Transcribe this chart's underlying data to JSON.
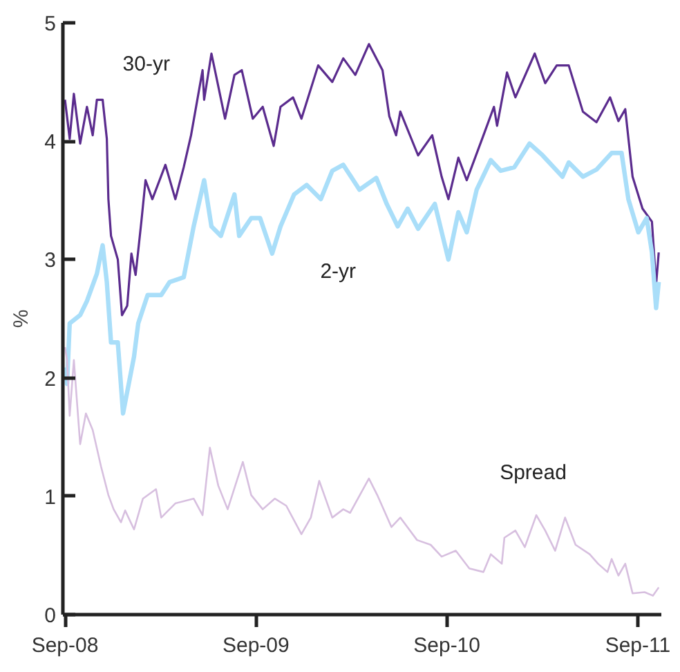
{
  "chart_data": {
    "type": "line",
    "ylabel": "%",
    "grid": false,
    "legend": false,
    "marker": "none",
    "line_style": "solid",
    "xlim": [
      "2008-08-28",
      "2011-10-16"
    ],
    "ylim": [
      0,
      5
    ],
    "xticks": [
      {
        "value": "2008-09-01",
        "label": "Sep-08"
      },
      {
        "value": "2009-09-01",
        "label": "Sep-09"
      },
      {
        "value": "2010-09-01",
        "label": "Sep-10"
      },
      {
        "value": "2011-09-01",
        "label": "Sep-11"
      }
    ],
    "yticks": [
      0,
      1,
      2,
      3,
      4,
      5
    ],
    "series": [
      {
        "name": "30-yr",
        "color": "#5b2c8e",
        "x": [
          "2008-09-01",
          "2008-09-10",
          "2008-09-18",
          "2008-09-30",
          "2008-10-13",
          "2008-10-24",
          "2008-11-01",
          "2008-11-12",
          "2008-11-20",
          "2008-11-23",
          "2008-11-28",
          "2008-12-11",
          "2008-12-19",
          "2008-12-29",
          "2009-01-06",
          "2009-01-14",
          "2009-01-25",
          "2009-02-02",
          "2009-02-15",
          "2009-03-12",
          "2009-03-31",
          "2009-04-16",
          "2009-04-30",
          "2009-05-22",
          "2009-05-25",
          "2009-06-08",
          "2009-07-04",
          "2009-07-22",
          "2009-08-05",
          "2009-08-26",
          "2009-09-14",
          "2009-10-05",
          "2009-10-18",
          "2009-11-11",
          "2009-11-27",
          "2009-12-29",
          "2010-01-25",
          "2010-02-15",
          "2010-03-10",
          "2010-04-05",
          "2010-05-01",
          "2010-05-14",
          "2010-05-27",
          "2010-06-04",
          "2010-07-08",
          "2010-08-04",
          "2010-08-22",
          "2010-09-04",
          "2010-09-23",
          "2010-10-09",
          "2010-11-10",
          "2010-11-30",
          "2010-12-06",
          "2010-12-25",
          "2011-01-10",
          "2011-02-16",
          "2011-03-08",
          "2011-03-30",
          "2011-04-22",
          "2011-05-19",
          "2011-06-14",
          "2011-07-10",
          "2011-07-26",
          "2011-08-08",
          "2011-08-22",
          "2011-09-10",
          "2011-09-28",
          "2011-10-06",
          "2011-10-11"
        ],
        "values": [
          4.35,
          4.02,
          4.4,
          3.98,
          4.29,
          4.05,
          4.35,
          4.35,
          4.02,
          3.51,
          3.2,
          3.0,
          2.53,
          2.61,
          3.05,
          2.87,
          3.32,
          3.67,
          3.51,
          3.8,
          3.51,
          3.78,
          4.05,
          4.6,
          4.35,
          4.74,
          4.19,
          4.56,
          4.6,
          4.19,
          4.29,
          3.96,
          4.29,
          4.37,
          4.19,
          4.64,
          4.5,
          4.7,
          4.56,
          4.82,
          4.6,
          4.21,
          4.05,
          4.25,
          3.88,
          4.05,
          3.7,
          3.51,
          3.86,
          3.67,
          4.05,
          4.29,
          4.13,
          4.58,
          4.37,
          4.74,
          4.49,
          4.64,
          4.64,
          4.25,
          4.16,
          4.37,
          4.17,
          4.27,
          3.7,
          3.43,
          3.32,
          2.79,
          3.06
        ]
      },
      {
        "name": "2-yr",
        "color": "#a9def9",
        "x": [
          "2008-09-01",
          "2008-09-05",
          "2008-09-10",
          "2008-09-30",
          "2008-10-13",
          "2008-11-01",
          "2008-11-12",
          "2008-11-20",
          "2008-11-28",
          "2008-12-11",
          "2008-12-21",
          "2009-01-11",
          "2009-01-19",
          "2009-02-06",
          "2009-03-04",
          "2009-03-20",
          "2009-04-16",
          "2009-05-05",
          "2009-05-25",
          "2009-06-08",
          "2009-06-26",
          "2009-07-22",
          "2009-07-31",
          "2009-08-23",
          "2009-09-09",
          "2009-10-02",
          "2009-10-18",
          "2009-11-13",
          "2009-12-07",
          "2010-01-03",
          "2010-01-25",
          "2010-02-15",
          "2010-03-18",
          "2010-04-19",
          "2010-05-09",
          "2010-05-30",
          "2010-06-18",
          "2010-07-08",
          "2010-08-09",
          "2010-09-04",
          "2010-09-23",
          "2010-10-09",
          "2010-10-28",
          "2010-11-24",
          "2010-12-13",
          "2011-01-08",
          "2011-02-06",
          "2011-03-03",
          "2011-04-10",
          "2011-04-22",
          "2011-05-19",
          "2011-06-14",
          "2011-07-13",
          "2011-08-01",
          "2011-08-14",
          "2011-09-02",
          "2011-09-18",
          "2011-09-28",
          "2011-10-06",
          "2011-10-11"
        ],
        "values": [
          2.09,
          1.95,
          2.46,
          2.53,
          2.65,
          2.88,
          3.12,
          2.81,
          2.3,
          2.3,
          1.7,
          2.18,
          2.46,
          2.7,
          2.7,
          2.81,
          2.85,
          3.28,
          3.67,
          3.28,
          3.2,
          3.55,
          3.2,
          3.35,
          3.35,
          3.05,
          3.28,
          3.55,
          3.63,
          3.51,
          3.75,
          3.8,
          3.59,
          3.69,
          3.47,
          3.28,
          3.43,
          3.26,
          3.47,
          3.0,
          3.4,
          3.23,
          3.59,
          3.84,
          3.75,
          3.78,
          3.98,
          3.88,
          3.7,
          3.82,
          3.7,
          3.76,
          3.9,
          3.9,
          3.51,
          3.23,
          3.35,
          3.06,
          2.59,
          2.81
        ]
      },
      {
        "name": "Spread",
        "color": "#d7bfdf",
        "x": [
          "2008-09-01",
          "2008-09-05",
          "2008-09-10",
          "2008-09-18",
          "2008-09-30",
          "2008-10-11",
          "2008-10-24",
          "2008-11-09",
          "2008-11-23",
          "2008-12-03",
          "2008-12-17",
          "2008-12-25",
          "2009-01-11",
          "2009-01-28",
          "2009-02-22",
          "2009-03-04",
          "2009-03-31",
          "2009-05-05",
          "2009-05-22",
          "2009-06-05",
          "2009-06-21",
          "2009-07-09",
          "2009-08-07",
          "2009-08-23",
          "2009-09-14",
          "2009-10-07",
          "2009-10-29",
          "2009-11-27",
          "2009-12-15",
          "2009-12-31",
          "2010-01-25",
          "2010-02-15",
          "2010-02-28",
          "2010-04-05",
          "2010-04-21",
          "2010-05-18",
          "2010-06-04",
          "2010-07-06",
          "2010-08-01",
          "2010-08-22",
          "2010-09-18",
          "2010-10-14",
          "2010-11-10",
          "2010-11-24",
          "2010-12-15",
          "2010-12-20",
          "2011-01-10",
          "2011-01-28",
          "2011-02-19",
          "2011-03-08",
          "2011-03-27",
          "2011-04-15",
          "2011-05-05",
          "2011-06-01",
          "2011-06-17",
          "2011-07-05",
          "2011-07-13",
          "2011-07-26",
          "2011-08-08",
          "2011-08-22",
          "2011-09-14",
          "2011-09-30",
          "2011-10-11"
        ],
        "values": [
          2.26,
          2.15,
          1.68,
          2.15,
          1.44,
          1.7,
          1.56,
          1.25,
          1.01,
          0.89,
          0.78,
          0.88,
          0.72,
          0.98,
          1.06,
          0.82,
          0.94,
          0.98,
          0.84,
          1.41,
          1.09,
          0.89,
          1.29,
          1.01,
          0.89,
          0.98,
          0.92,
          0.68,
          0.82,
          1.13,
          0.82,
          0.89,
          0.86,
          1.15,
          1.01,
          0.74,
          0.82,
          0.63,
          0.59,
          0.49,
          0.54,
          0.39,
          0.36,
          0.51,
          0.43,
          0.65,
          0.71,
          0.57,
          0.84,
          0.71,
          0.54,
          0.82,
          0.59,
          0.51,
          0.43,
          0.36,
          0.47,
          0.33,
          0.43,
          0.18,
          0.19,
          0.16,
          0.23
        ]
      }
    ]
  }
}
